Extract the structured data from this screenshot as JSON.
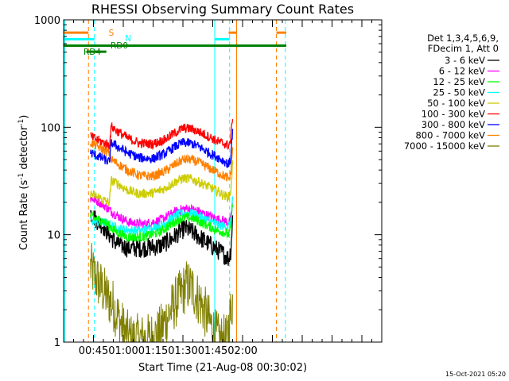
{
  "chart_data": {
    "type": "line",
    "title": "RHESSI Observing Summary Count Rates",
    "xlabel": "Start Time (21-Aug-08 00:30:02)",
    "ylabel_main": "Count Rate (s",
    "ylabel_sup1": "-1",
    "ylabel_mid": " detector",
    "ylabel_sup2": "-1",
    "ylabel_end": ")",
    "y_scale": "log",
    "ylim": [
      1,
      1000
    ],
    "xlim_minutes": [
      30,
      190
    ],
    "x_ticks": [
      {
        "minute": 45,
        "label": "00:45"
      },
      {
        "minute": 60,
        "label": "01:00"
      },
      {
        "minute": 75,
        "label": "01:15"
      },
      {
        "minute": 90,
        "label": "01:30"
      },
      {
        "minute": 105,
        "label": "01:45"
      },
      {
        "minute": 120,
        "label": "02:00"
      }
    ],
    "y_ticks": [
      {
        "value": 1,
        "label": "1"
      },
      {
        "value": 10,
        "label": "10"
      },
      {
        "value": 100,
        "label": "100"
      },
      {
        "value": 1000,
        "label": "1000"
      }
    ],
    "legend_header": [
      "Det 1,3,4,5,6,9,",
      "FDecim 1, Att 0"
    ],
    "legend_placement": "right",
    "data_start_minute": 43.5,
    "data_end_minute": 115,
    "series": [
      {
        "name": "3 - 6 keV",
        "color": "#000000",
        "points": [
          [
            43.5,
            16
          ],
          [
            46,
            14
          ],
          [
            50,
            12
          ],
          [
            53,
            10
          ],
          [
            56,
            8.5
          ],
          [
            62,
            7.5
          ],
          [
            70,
            7.5
          ],
          [
            78,
            7.8
          ],
          [
            84,
            9
          ],
          [
            88,
            10.5
          ],
          [
            91,
            11.5
          ],
          [
            95,
            10.5
          ],
          [
            100,
            9
          ],
          [
            106,
            7.5
          ],
          [
            111,
            6.5
          ],
          [
            113,
            6
          ],
          [
            114,
            7
          ],
          [
            115,
            14
          ]
        ]
      },
      {
        "name": "6 - 12 keV",
        "color": "#ff00ff",
        "points": [
          [
            43.5,
            22
          ],
          [
            46,
            21
          ],
          [
            50,
            19
          ],
          [
            53,
            17
          ],
          [
            57,
            15
          ],
          [
            63,
            13
          ],
          [
            70,
            12.5
          ],
          [
            78,
            13.5
          ],
          [
            84,
            15.5
          ],
          [
            88,
            17
          ],
          [
            92,
            17.5
          ],
          [
            96,
            17
          ],
          [
            101,
            15.5
          ],
          [
            107,
            14
          ],
          [
            111,
            13.5
          ],
          [
            113,
            13
          ],
          [
            114,
            13.5
          ],
          [
            115,
            20
          ]
        ]
      },
      {
        "name": "12 - 25 keV",
        "color": "#00ff00",
        "points": [
          [
            43.5,
            15
          ],
          [
            46,
            14
          ],
          [
            50,
            13.5
          ],
          [
            53,
            12
          ],
          [
            57,
            10.5
          ],
          [
            62,
            9.5
          ],
          [
            70,
            9.5
          ],
          [
            78,
            10.5
          ],
          [
            84,
            12.5
          ],
          [
            88,
            14
          ],
          [
            92,
            14.5
          ],
          [
            96,
            14
          ],
          [
            101,
            12.5
          ],
          [
            107,
            11
          ],
          [
            111,
            10.5
          ],
          [
            113,
            10
          ],
          [
            114,
            11
          ],
          [
            115,
            20
          ]
        ]
      },
      {
        "name": "25 - 50 keV",
        "color": "#00ffff",
        "points": [
          [
            43.5,
            14
          ],
          [
            46,
            13
          ],
          [
            50,
            13
          ],
          [
            53,
            12.5
          ],
          [
            57,
            11.5
          ],
          [
            63,
            11
          ],
          [
            70,
            11
          ],
          [
            78,
            12
          ],
          [
            84,
            14
          ],
          [
            88,
            15.5
          ],
          [
            92,
            16
          ],
          [
            96,
            15.5
          ],
          [
            101,
            14
          ],
          [
            107,
            12.5
          ],
          [
            111,
            12
          ],
          [
            113,
            12
          ],
          [
            114,
            13
          ],
          [
            115,
            22
          ]
        ]
      },
      {
        "name": "50 - 100 keV",
        "color": "#cccc00",
        "points": [
          [
            43.5,
            24
          ],
          [
            46,
            23
          ],
          [
            50,
            21
          ],
          [
            53,
            20
          ],
          [
            54,
            32
          ],
          [
            57,
            30
          ],
          [
            62,
            26
          ],
          [
            68,
            24
          ],
          [
            75,
            24.5
          ],
          [
            81,
            27
          ],
          [
            86,
            31
          ],
          [
            90,
            33.5
          ],
          [
            94,
            33
          ],
          [
            98,
            31
          ],
          [
            103,
            28
          ],
          [
            108,
            25
          ],
          [
            111,
            23
          ],
          [
            113,
            22.5
          ],
          [
            114,
            25
          ],
          [
            115,
            45
          ]
        ]
      },
      {
        "name": "100 - 300 keV",
        "color": "#ff0000",
        "points": [
          [
            43.5,
            82
          ],
          [
            46,
            78
          ],
          [
            50,
            72
          ],
          [
            53,
            68
          ],
          [
            54,
            102
          ],
          [
            57,
            92
          ],
          [
            62,
            80
          ],
          [
            68,
            71
          ],
          [
            75,
            70
          ],
          [
            81,
            77
          ],
          [
            86,
            89
          ],
          [
            90,
            98
          ],
          [
            94,
            97
          ],
          [
            98,
            91
          ],
          [
            103,
            82
          ],
          [
            108,
            73
          ],
          [
            111,
            70
          ],
          [
            113,
            68
          ],
          [
            114,
            75
          ],
          [
            115,
            130
          ]
        ]
      },
      {
        "name": "300 - 800 keV",
        "color": "#0000ff",
        "points": [
          [
            43.5,
            58
          ],
          [
            46,
            55
          ],
          [
            50,
            51
          ],
          [
            53,
            47
          ],
          [
            54,
            72
          ],
          [
            57,
            66
          ],
          [
            62,
            58
          ],
          [
            68,
            52
          ],
          [
            75,
            51
          ],
          [
            81,
            57
          ],
          [
            86,
            66
          ],
          [
            90,
            72
          ],
          [
            94,
            71
          ],
          [
            98,
            66
          ],
          [
            103,
            58
          ],
          [
            108,
            52
          ],
          [
            111,
            48
          ],
          [
            113,
            45
          ],
          [
            114,
            50
          ],
          [
            115,
            95
          ]
        ]
      },
      {
        "name": "800 - 7000 keV",
        "color": "#ff8000",
        "points": [
          [
            43.5,
            72
          ],
          [
            46,
            68
          ],
          [
            50,
            62
          ],
          [
            53,
            57
          ],
          [
            54,
            50
          ],
          [
            57,
            46
          ],
          [
            62,
            40
          ],
          [
            68,
            35.5
          ],
          [
            75,
            35
          ],
          [
            81,
            39
          ],
          [
            86,
            45
          ],
          [
            90,
            50
          ],
          [
            94,
            50
          ],
          [
            98,
            47
          ],
          [
            103,
            42
          ],
          [
            108,
            37.5
          ],
          [
            111,
            35
          ],
          [
            113,
            33
          ],
          [
            114,
            36
          ],
          [
            115,
            65
          ]
        ]
      },
      {
        "name": "7000 - 15000 keV",
        "color": "#808000",
        "points": [
          [
            43.5,
            5
          ],
          [
            46,
            4
          ],
          [
            49,
            3.2
          ],
          [
            52,
            2.6
          ],
          [
            55,
            2.2
          ],
          [
            58,
            1.6
          ],
          [
            61,
            1.2
          ],
          [
            64,
            1.05
          ],
          [
            72,
            1.05
          ],
          [
            78,
            1.2
          ],
          [
            82,
            1.7
          ],
          [
            86,
            2.3
          ],
          [
            89,
            2.8
          ],
          [
            92,
            3.4
          ],
          [
            95,
            3.1
          ],
          [
            99,
            2.3
          ],
          [
            103,
            1.6
          ],
          [
            106,
            1.2
          ],
          [
            108,
            1.05
          ],
          [
            112,
            1.02
          ],
          [
            115,
            2.5
          ]
        ]
      }
    ],
    "state_bars": [
      {
        "label": "S",
        "color": "#ff8000",
        "y_value": 760,
        "segments": [
          [
            30,
            42.5
          ],
          [
            113,
            117
          ],
          [
            137,
            142
          ]
        ]
      },
      {
        "label": "N",
        "color": "#00ffff",
        "y_value": 660,
        "segments": [
          [
            30,
            45.5
          ],
          [
            106,
            113.5
          ]
        ]
      },
      {
        "label": "RD0",
        "color": "#008000",
        "y_value": 575,
        "segments": [
          [
            30,
            142
          ]
        ]
      },
      {
        "label": "RD4",
        "color": "#008000",
        "y_value": 505,
        "segments": [
          [
            41.5,
            51.5
          ]
        ]
      }
    ],
    "vertical_lines": [
      {
        "minute": 30.6,
        "color": "#00ffff",
        "dash": false
      },
      {
        "minute": 42.5,
        "color": "#ff8000",
        "dash": true
      },
      {
        "minute": 45.5,
        "color": "#00ffff",
        "dash": true
      },
      {
        "minute": 106,
        "color": "#00ffff",
        "dash": false
      },
      {
        "minute": 113.5,
        "color": "#00ffff",
        "dash": true
      },
      {
        "minute": 117,
        "color": "#ff8000",
        "dash": false
      },
      {
        "minute": 137,
        "color": "#ff8000",
        "dash": true
      },
      {
        "minute": 141.5,
        "color": "#00ffff",
        "dash": true
      }
    ],
    "timestamp": "15-Oct-2021 05:20"
  }
}
